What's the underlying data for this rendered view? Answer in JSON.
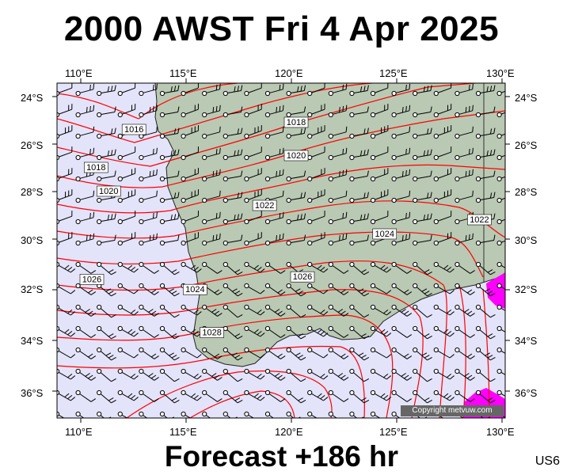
{
  "header": {
    "title": "2000 AWST Fri 4 Apr 2025"
  },
  "footer": {
    "forecast": "Forecast +186 hr",
    "model_code": "US6"
  },
  "copyright": "Copyright metvuw.com",
  "axes": {
    "lon_ticks": [
      "110°E",
      "115°E",
      "120°E",
      "125°E",
      "130°E"
    ],
    "lat_ticks": [
      "24°S",
      "26°S",
      "28°S",
      "30°S",
      "32°S",
      "34°S",
      "36°S"
    ]
  },
  "colors": {
    "sea": "#e3e3fa",
    "land": "#b9c9b3",
    "isobar": "#ff0000",
    "rain": "#ff00ff"
  },
  "isobar_labels": [
    {
      "text": "1016",
      "lon": 112.0,
      "lat": -25.5
    },
    {
      "text": "1018",
      "lon": 110.2,
      "lat": -27.1
    },
    {
      "text": "1020",
      "lon": 110.8,
      "lat": -28.1
    },
    {
      "text": "1026",
      "lon": 110.0,
      "lat": -31.7
    },
    {
      "text": "1024",
      "lon": 114.9,
      "lat": -32.1
    },
    {
      "text": "1028",
      "lon": 115.7,
      "lat": -33.8
    },
    {
      "text": "1018",
      "lon": 119.7,
      "lat": -25.2
    },
    {
      "text": "1020",
      "lon": 119.7,
      "lat": -26.6
    },
    {
      "text": "1022",
      "lon": 118.2,
      "lat": -28.7
    },
    {
      "text": "1024",
      "lon": 123.9,
      "lat": -29.9
    },
    {
      "text": "1026",
      "lon": 120.0,
      "lat": -31.6
    },
    {
      "text": "1022",
      "lon": 128.4,
      "lat": -29.3
    }
  ]
}
